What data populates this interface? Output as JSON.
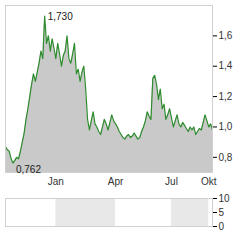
{
  "chart_data": [
    {
      "type": "area",
      "categories": [
        null,
        null,
        null,
        null,
        null,
        null,
        null,
        null,
        null,
        null,
        null,
        null,
        null,
        null,
        null,
        null,
        null,
        null,
        null,
        null,
        null,
        null,
        null,
        null,
        null,
        null,
        null,
        "Jan",
        null,
        null,
        null,
        null,
        null,
        null,
        null,
        null,
        null,
        null,
        null,
        null,
        null,
        null,
        null,
        null,
        null,
        null,
        null,
        null,
        null,
        null,
        null,
        null,
        null,
        null,
        null,
        null,
        null,
        null,
        null,
        "Apr",
        null,
        null,
        null,
        null,
        null,
        null,
        null,
        null,
        null,
        null,
        null,
        null,
        null,
        null,
        null,
        null,
        null,
        null,
        null,
        null,
        null,
        null,
        null,
        null,
        null,
        null,
        null,
        null,
        null,
        "Jul",
        null,
        null,
        null,
        null,
        null,
        null,
        null,
        null,
        null,
        null,
        null,
        null,
        null,
        null,
        null,
        null,
        null,
        null,
        null,
        "Okt",
        null,
        null
      ],
      "values": [
        0.87,
        0.85,
        0.84,
        0.79,
        0.762,
        0.78,
        0.8,
        0.79,
        0.84,
        0.9,
        0.96,
        1.05,
        1.12,
        1.2,
        1.28,
        1.35,
        1.3,
        1.36,
        1.42,
        1.5,
        1.45,
        1.73,
        1.55,
        1.6,
        1.5,
        1.58,
        1.52,
        1.45,
        1.55,
        1.48,
        1.4,
        1.47,
        1.5,
        1.6,
        1.45,
        1.42,
        1.48,
        1.55,
        1.35,
        1.38,
        1.3,
        1.36,
        1.4,
        1.25,
        1.05,
        0.98,
        1.04,
        1.1,
        1.02,
        1.0,
        0.97,
        0.95,
        1.0,
        1.05,
        1.02,
        0.98,
        1.03,
        1.08,
        1.04,
        1.02,
        1.0,
        0.97,
        0.95,
        0.93,
        0.92,
        0.94,
        0.95,
        0.93,
        0.94,
        0.96,
        0.94,
        0.92,
        0.93,
        0.97,
        1.0,
        1.04,
        1.1,
        1.07,
        1.05,
        1.32,
        1.34,
        1.28,
        1.18,
        1.25,
        1.12,
        1.15,
        1.05,
        1.08,
        1.12,
        1.06,
        1.0,
        1.04,
        1.08,
        1.02,
        1.0,
        1.03,
        1.01,
        0.99,
        0.97,
        1.0,
        0.98,
        1.0,
        0.95,
        0.97,
        0.99,
        0.98,
        1.03,
        1.08,
        1.04,
        1.0,
        1.02,
        0.98
      ],
      "color": "#2e8b2e",
      "ylim": [
        0.7,
        1.8
      ],
      "yticks": [
        {
          "value": 0.8,
          "label": "0,8"
        },
        {
          "value": 1.0,
          "label": "1,0"
        },
        {
          "value": 1.2,
          "label": "1,2"
        },
        {
          "value": 1.4,
          "label": "1,4"
        },
        {
          "value": 1.6,
          "label": "1,6"
        }
      ],
      "annotations": [
        {
          "text": "1,730",
          "value": 1.73
        },
        {
          "text": "0,762",
          "value": 0.762
        }
      ]
    },
    {
      "type": "bar",
      "ylim": [
        0,
        10
      ],
      "yticks": [
        0,
        5,
        10
      ],
      "tick_labels": "y"
    }
  ]
}
